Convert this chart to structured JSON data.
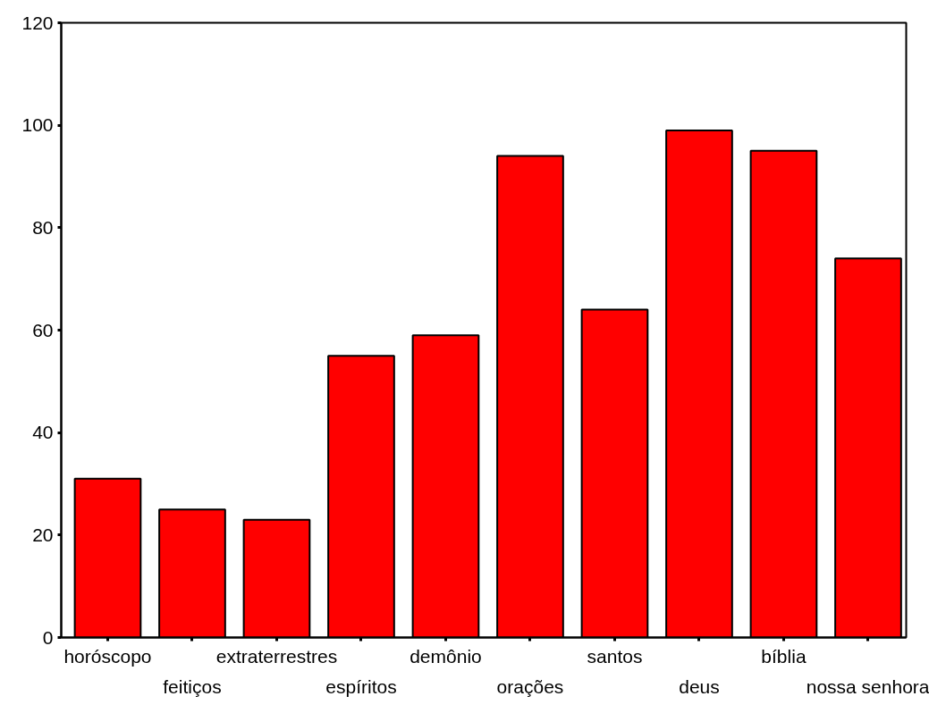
{
  "chart_data": {
    "type": "bar",
    "categories": [
      "horóscopo",
      "feitiços",
      "extraterrestres",
      "espíritos",
      "demônio",
      "orações",
      "santos",
      "deus",
      "bíblia",
      "nossa senhora"
    ],
    "values": [
      31,
      25,
      23,
      55,
      59,
      94,
      64,
      99,
      95,
      74
    ],
    "color": "#ff0000",
    "ylim": [
      0,
      120
    ],
    "yticks": [
      0,
      20,
      40,
      60,
      80,
      100,
      120
    ],
    "grid": false
  }
}
